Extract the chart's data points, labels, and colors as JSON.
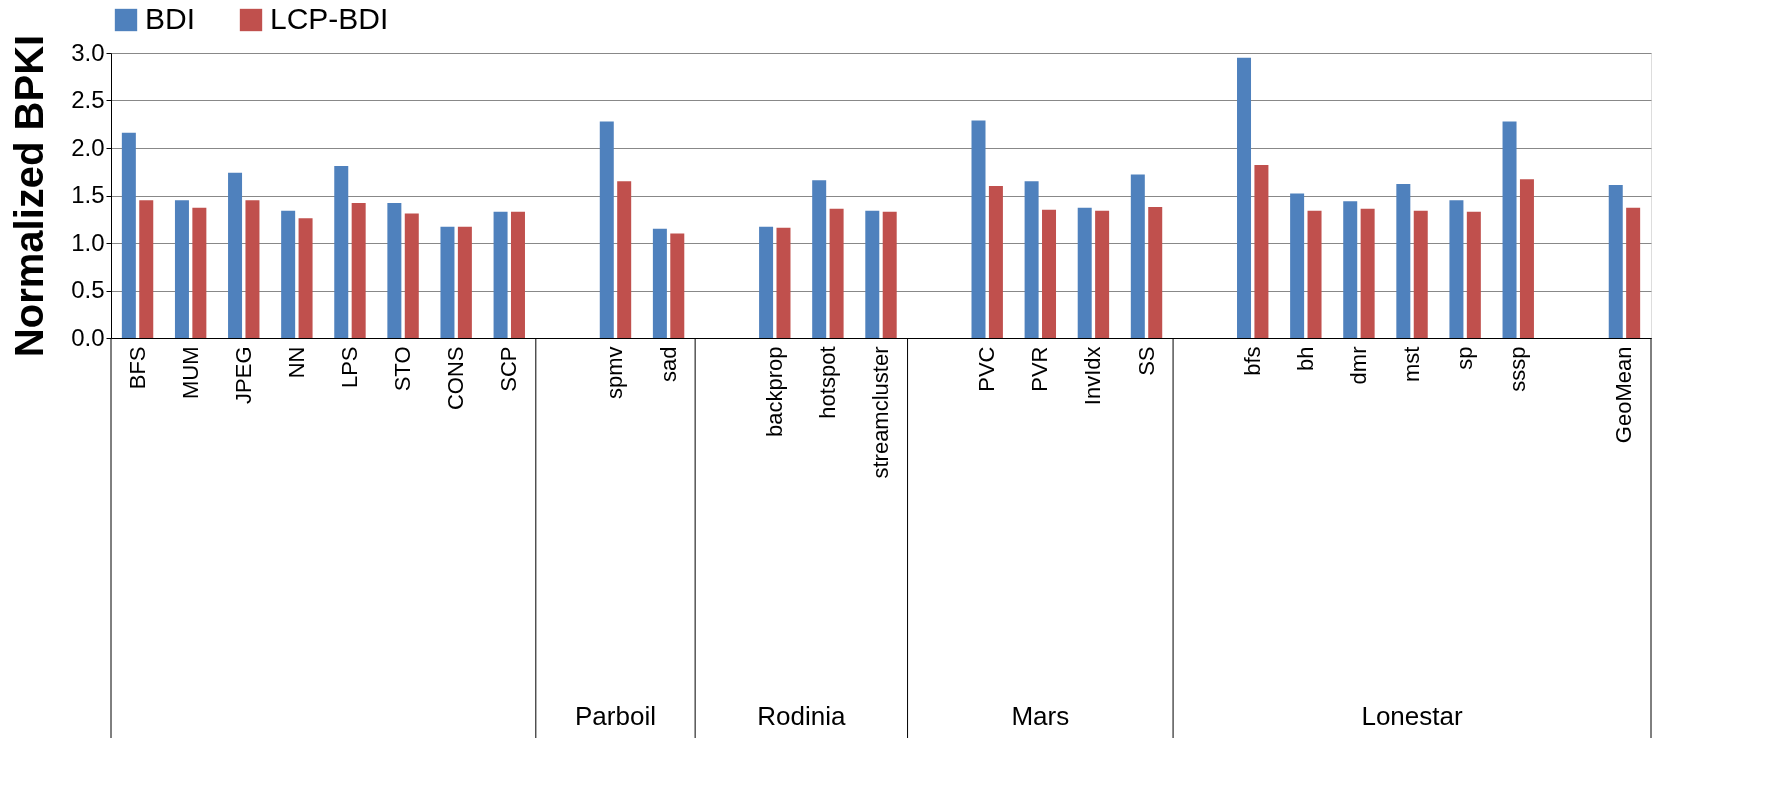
{
  "chart_data": {
    "type": "bar",
    "ylabel": "Normalized BPKI",
    "categories": [
      "BFS",
      "MUM",
      "JPEG",
      "NN",
      "LPS",
      "STO",
      "CONS",
      "SCP",
      null,
      "spmv",
      "sad",
      null,
      "backprop",
      "hotspot",
      "streamcluster",
      null,
      "PVC",
      "PVR",
      "InvIdx",
      "SS",
      null,
      "bfs",
      "bh",
      "dmr",
      "mst",
      "sp",
      "sssp",
      null,
      "GeoMean"
    ],
    "series": [
      {
        "name": "BDI",
        "color": "#4f81bd",
        "values": [
          2.16,
          1.45,
          1.74,
          1.34,
          1.81,
          1.42,
          1.17,
          1.33,
          null,
          2.28,
          1.15,
          null,
          1.17,
          1.66,
          1.34,
          null,
          2.29,
          1.65,
          1.37,
          1.72,
          null,
          2.95,
          1.52,
          1.44,
          1.62,
          1.45,
          2.28,
          null,
          1.61
        ]
      },
      {
        "name": "LCP-BDI",
        "color": "#c0504d",
        "values": [
          1.45,
          1.37,
          1.45,
          1.26,
          1.42,
          1.31,
          1.17,
          1.33,
          null,
          1.65,
          1.1,
          null,
          1.16,
          1.36,
          1.33,
          null,
          1.6,
          1.35,
          1.34,
          1.38,
          null,
          1.82,
          1.34,
          1.36,
          1.34,
          1.33,
          1.67,
          null,
          1.37
        ]
      }
    ],
    "ylim": [
      0,
      3.0
    ],
    "yticks": [
      {
        "value": 0,
        "label": "0.0"
      },
      {
        "value": 0.5,
        "label": "0.5"
      },
      {
        "value": 1,
        "label": "1.0"
      },
      {
        "value": 1.5,
        "label": "1.5"
      },
      {
        "value": 2,
        "label": "2.0"
      },
      {
        "value": 2.5,
        "label": "2.5"
      },
      {
        "value": 3,
        "label": "3.0"
      }
    ],
    "grid": "y",
    "legend": "top",
    "annotations": [
      "Parboil",
      "Rodinia",
      "Mars",
      "Lonestar"
    ]
  }
}
